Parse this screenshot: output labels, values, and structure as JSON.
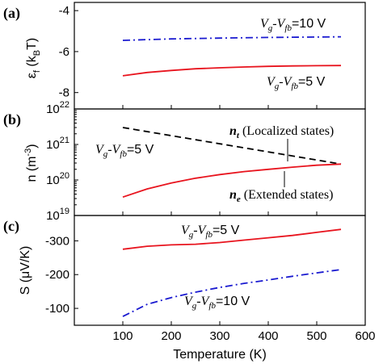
{
  "chart_data": [
    {
      "panel": "(a)",
      "type": "line",
      "ylabel": "εf (kBT)",
      "ylabel_parts": {
        "main": "ε",
        "sub1": "f",
        "open": " (k",
        "sub2": "B",
        "close": "T)"
      },
      "ylim": [
        -8.8,
        -3.6
      ],
      "yticks": [
        -8,
        -6,
        -4
      ],
      "ytick_labels": [
        "-8",
        "-6",
        "-4"
      ],
      "xlim": [
        0,
        600
      ],
      "series": [
        {
          "name": "Vg-Vfb=10 V",
          "style": "dashdot",
          "color": "#1a1ad0",
          "x": [
            100,
            200,
            300,
            400,
            550
          ],
          "y": [
            -5.45,
            -5.38,
            -5.34,
            -5.31,
            -5.28
          ]
        },
        {
          "name": "Vg-Vfb=5 V",
          "style": "solid",
          "color": "#e8141e",
          "x": [
            100,
            150,
            200,
            250,
            300,
            350,
            400,
            450,
            500,
            550
          ],
          "y": [
            -7.18,
            -7.02,
            -6.92,
            -6.84,
            -6.79,
            -6.75,
            -6.72,
            -6.7,
            -6.69,
            -6.68
          ]
        }
      ],
      "annotations": [
        {
          "target": "Vg-Vfb=10 V",
          "parts": [
            "V",
            "g",
            "-V",
            "fb",
            "=10 V"
          ]
        },
        {
          "target": "Vg-Vfb=5 V",
          "parts": [
            "V",
            "g",
            "-V",
            "fb",
            "=5 V"
          ]
        }
      ]
    },
    {
      "panel": "(b)",
      "type": "line",
      "yscale": "log",
      "ylabel": "n (m-3)",
      "ylabel_parts": {
        "main": "n (m",
        "sup": "-3",
        "close": ")"
      },
      "ylim": [
        1e+19,
        1e+22
      ],
      "yticks": [
        1e+19,
        1e+20,
        1e+21,
        1e+22
      ],
      "ytick_labels": [
        {
          "base": "10",
          "exp": "19"
        },
        {
          "base": "10",
          "exp": "20"
        },
        {
          "base": "10",
          "exp": "21"
        },
        {
          "base": "10",
          "exp": "22"
        }
      ],
      "xlim": [
        0,
        600
      ],
      "series": [
        {
          "name": "nt (Localized states)",
          "style": "dashed",
          "color": "#000000",
          "x": [
            100,
            550
          ],
          "y": [
            3e+21,
            2.8e+20
          ]
        },
        {
          "name": "ne (Extended states)",
          "style": "solid",
          "color": "#e8141e",
          "x": [
            100,
            150,
            200,
            250,
            300,
            350,
            400,
            450,
            500,
            550
          ],
          "y": [
            3.3e+19,
            5.6e+19,
            8.2e+19,
            1.12e+20,
            1.42e+20,
            1.72e+20,
            2e+20,
            2.3e+20,
            2.6e+20,
            2.8e+20
          ]
        }
      ],
      "annotations": [
        {
          "target": "condition",
          "parts": [
            "V",
            "g",
            "-V",
            "fb",
            "=5 V"
          ]
        },
        {
          "target": "nt (Localized states)",
          "symbol": "n",
          "sub": "t",
          "text": " (Localized states)"
        },
        {
          "target": "ne (Extended states)",
          "symbol": "n",
          "sub": "e",
          "text": " (Extended states)"
        }
      ]
    },
    {
      "panel": "(c)",
      "type": "line",
      "ylabel": "S (μV/K)",
      "ylim": [
        -50,
        -375
      ],
      "yticks": [
        -100,
        -200,
        -300
      ],
      "ytick_labels": [
        "-100",
        "-200",
        "-300"
      ],
      "xlim": [
        0,
        600
      ],
      "xticks": [
        100,
        200,
        300,
        400,
        500,
        600
      ],
      "xlabel": "Temperature (K)",
      "series": [
        {
          "name": "Vg-Vfb=5 V",
          "style": "solid",
          "color": "#e8141e",
          "x": [
            100,
            150,
            200,
            250,
            300,
            350,
            400,
            450,
            500,
            550
          ],
          "y": [
            -275,
            -284,
            -288,
            -290,
            -295,
            -302,
            -309,
            -316,
            -325,
            -334
          ]
        },
        {
          "name": "Vg-Vfb=10 V",
          "style": "dashdot",
          "color": "#1a1ad0",
          "x": [
            100,
            150,
            200,
            250,
            300,
            350,
            400,
            450,
            500,
            550
          ],
          "y": [
            -76,
            -112,
            -132,
            -148,
            -162,
            -174,
            -184,
            -195,
            -205,
            -215
          ]
        }
      ],
      "annotations": [
        {
          "target": "Vg-Vfb=5 V",
          "parts": [
            "V",
            "g",
            "-V",
            "fb",
            "=5 V"
          ]
        },
        {
          "target": "Vg-Vfb=10 V",
          "parts": [
            "V",
            "g",
            "-V",
            "fb",
            "=10 V"
          ]
        }
      ]
    }
  ]
}
